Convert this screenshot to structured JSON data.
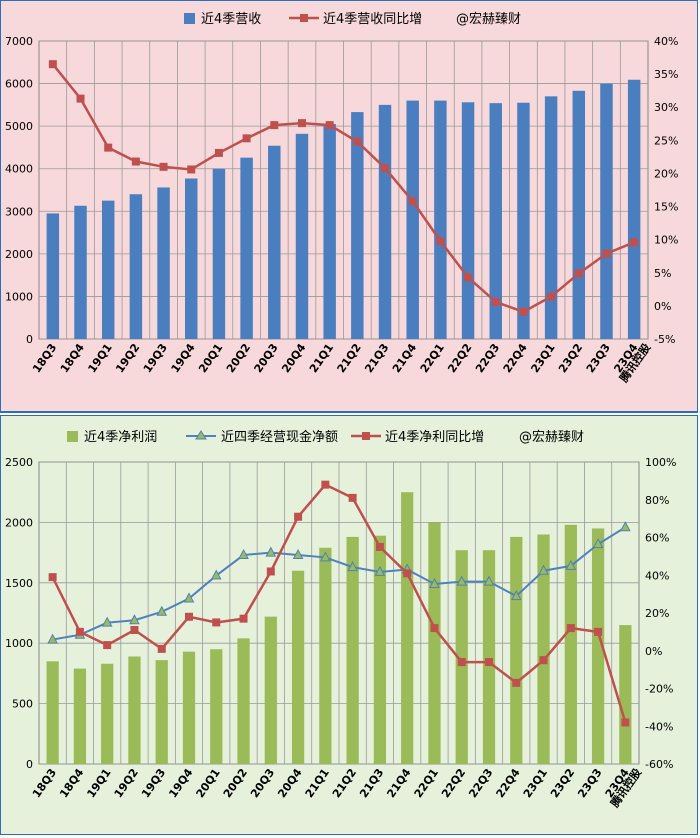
{
  "colors": {
    "panel1_bg": "#f7d9dc",
    "panel2_bg": "#e6f1dc",
    "bar_blue": "#4a7ebf",
    "line_red": "#c0504d",
    "bar_green": "#9bbb59",
    "line_blue": "#4f81bd",
    "border": "#2a6fb8"
  },
  "chart_data": [
    {
      "type": "bar+line",
      "categories": [
        "18Q3",
        "18Q4",
        "19Q1",
        "19Q2",
        "19Q3",
        "19Q4",
        "20Q1",
        "20Q2",
        "20Q3",
        "20Q4",
        "21Q1",
        "21Q2",
        "21Q3",
        "21Q4",
        "22Q1",
        "22Q2",
        "22Q3",
        "22Q4",
        "23Q1",
        "23Q2",
        "23Q3",
        "23Q4"
      ],
      "x_last_label": "腾讯控股",
      "legend": {
        "bar": "近4季营收",
        "line": "近4季营收同比增",
        "watermark": "@宏赫臻财"
      },
      "series": [
        {
          "name": "近4季营收",
          "type": "bar",
          "axis": "left",
          "values": [
            2950,
            3130,
            3250,
            3400,
            3560,
            3770,
            4000,
            4260,
            4540,
            4820,
            5050,
            5330,
            5500,
            5600,
            5600,
            5560,
            5540,
            5550,
            5700,
            5830,
            6000,
            6090
          ]
        },
        {
          "name": "近4季营收同比增",
          "type": "line",
          "axis": "right",
          "values": [
            36.5,
            31.3,
            23.9,
            21.8,
            21.0,
            20.6,
            23.1,
            25.3,
            27.3,
            27.6,
            27.3,
            24.8,
            20.8,
            15.8,
            9.8,
            4.3,
            0.6,
            -0.9,
            1.4,
            4.9,
            7.9,
            9.6
          ]
        }
      ],
      "y_left": {
        "min": 0,
        "max": 7000,
        "ticks": [
          0,
          1000,
          2000,
          3000,
          4000,
          5000,
          6000,
          7000
        ]
      },
      "y_right": {
        "min": -5,
        "max": 40,
        "ticks": [
          "-5%",
          "0%",
          "5%",
          "10%",
          "15%",
          "20%",
          "25%",
          "30%",
          "35%",
          "40%"
        ]
      },
      "grid": true
    },
    {
      "type": "bar+line",
      "categories": [
        "18Q3",
        "18Q4",
        "19Q1",
        "19Q2",
        "19Q3",
        "19Q4",
        "20Q1",
        "20Q2",
        "20Q3",
        "20Q4",
        "21Q1",
        "21Q2",
        "21Q3",
        "21Q4",
        "22Q1",
        "22Q2",
        "22Q3",
        "22Q4",
        "23Q1",
        "23Q2",
        "23Q3",
        "23Q4"
      ],
      "x_last_label": "腾讯控股",
      "legend": {
        "bar": "近4季净利润",
        "line1": "近四季经营现金净额",
        "line2": "近4季净利同比增",
        "watermark": "@宏赫臻财"
      },
      "series": [
        {
          "name": "近4季净利润",
          "type": "bar",
          "axis": "left",
          "values": [
            850,
            790,
            830,
            890,
            860,
            930,
            950,
            1040,
            1220,
            1600,
            1790,
            1880,
            1890,
            2250,
            2000,
            1770,
            1770,
            1880,
            1900,
            1980,
            1950,
            1150
          ]
        },
        {
          "name": "近四季经营现金净额",
          "type": "line",
          "axis": "left",
          "values": [
            1030,
            1070,
            1170,
            1190,
            1260,
            1370,
            1560,
            1730,
            1750,
            1730,
            1710,
            1630,
            1590,
            1610,
            1490,
            1510,
            1510,
            1390,
            1600,
            1640,
            1820,
            1960
          ]
        },
        {
          "name": "近4季净利同比增",
          "type": "line",
          "axis": "right",
          "values": [
            39,
            10,
            3,
            11,
            1,
            18,
            15,
            17,
            42,
            71,
            88,
            81,
            55,
            41,
            12,
            -6,
            -6,
            -17,
            -5,
            12,
            10,
            -38
          ]
        }
      ],
      "y_left": {
        "min": 0,
        "max": 2500,
        "ticks": [
          0,
          500,
          1000,
          1500,
          2000,
          2500
        ]
      },
      "y_right": {
        "min": -60,
        "max": 100,
        "ticks": [
          "-60%",
          "-40%",
          "-20%",
          "0%",
          "20%",
          "40%",
          "60%",
          "80%",
          "100%"
        ]
      },
      "grid": true
    }
  ]
}
